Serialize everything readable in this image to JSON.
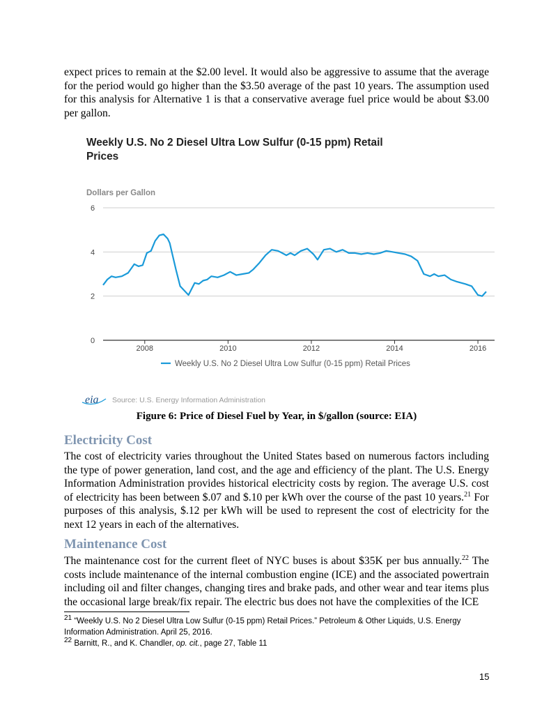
{
  "intro_paragraph": "expect prices to remain at the $2.00 level. It would also be aggressive to assume that the average for the period would go higher than the $3.50 average of the past 10 years.  The assumption used for this analysis for Alternative 1 is that a conservative average fuel price would be about $3.00 per gallon.",
  "figure": {
    "title": "Weekly U.S. No 2 Diesel Ultra Low Sulfur (0-15 ppm) Retail Prices",
    "source": "Source: U.S. Energy Information Administration",
    "logo_text": "eia",
    "caption": "Figure 6:  Price of Diesel Fuel by Year, in $/gallon (source: EIA)"
  },
  "chart_data": {
    "type": "line",
    "title": "Weekly U.S. No 2 Diesel Ultra Low Sulfur (0-15 ppm) Retail Prices",
    "ylabel": "Dollars per Gallon",
    "xlabel": "",
    "ylim": [
      0,
      6
    ],
    "xlim": [
      2007.0,
      2016.4
    ],
    "y_ticks": [
      "0",
      "2",
      "4",
      "6"
    ],
    "x_ticks": [
      "2008",
      "2010",
      "2012",
      "2014",
      "2016"
    ],
    "grid": "horizontal",
    "legend": "bottom",
    "color": "#1a9ad9",
    "series": [
      {
        "name": "Weekly U.S. No 2 Diesel Ultra Low Sulfur (0-15 ppm) Retail Prices",
        "x": [
          2007.0,
          2007.1,
          2007.2,
          2007.3,
          2007.45,
          2007.6,
          2007.75,
          2007.85,
          2007.95,
          2008.05,
          2008.15,
          2008.25,
          2008.35,
          2008.45,
          2008.55,
          2008.6,
          2008.65,
          2008.75,
          2008.85,
          2008.95,
          2009.05,
          2009.2,
          2009.3,
          2009.4,
          2009.5,
          2009.6,
          2009.75,
          2009.9,
          2010.05,
          2010.2,
          2010.35,
          2010.5,
          2010.6,
          2010.75,
          2010.9,
          2011.05,
          2011.2,
          2011.3,
          2011.4,
          2011.5,
          2011.6,
          2011.75,
          2011.9,
          2012.05,
          2012.15,
          2012.3,
          2012.45,
          2012.6,
          2012.75,
          2012.9,
          2013.05,
          2013.2,
          2013.35,
          2013.5,
          2013.65,
          2013.8,
          2013.95,
          2014.1,
          2014.25,
          2014.4,
          2014.55,
          2014.7,
          2014.85,
          2014.95,
          2015.05,
          2015.2,
          2015.35,
          2015.5,
          2015.7,
          2015.85,
          2016.0,
          2016.1,
          2016.2
        ],
        "values": [
          2.5,
          2.75,
          2.9,
          2.85,
          2.9,
          3.05,
          3.45,
          3.35,
          3.4,
          3.95,
          4.05,
          4.5,
          4.75,
          4.8,
          4.6,
          4.4,
          4.0,
          3.2,
          2.45,
          2.25,
          2.05,
          2.6,
          2.55,
          2.7,
          2.75,
          2.9,
          2.85,
          2.95,
          3.1,
          2.95,
          3.0,
          3.05,
          3.2,
          3.5,
          3.85,
          4.1,
          4.05,
          3.95,
          3.85,
          3.95,
          3.85,
          4.05,
          4.15,
          3.9,
          3.65,
          4.1,
          4.15,
          4.0,
          4.1,
          3.95,
          3.95,
          3.9,
          3.95,
          3.9,
          3.95,
          4.05,
          4.0,
          3.95,
          3.9,
          3.8,
          3.6,
          3.0,
          2.9,
          3.0,
          2.9,
          2.95,
          2.75,
          2.65,
          2.55,
          2.45,
          2.05,
          2.0,
          2.2
        ]
      }
    ]
  },
  "sections": [
    {
      "heading": "Electricity Cost",
      "text_before_note": "The cost of electricity varies throughout the United States based on numerous factors including the type of power generation, land cost, and the age and efficiency of the plant.  The U.S. Energy Information Administration provides historical electricity costs by region.  The average U.S. cost of electricity has been between $.07 and $.10 per kWh over the course of the past 10 years.",
      "note": "21",
      "text_after_note": "  For purposes of this analysis, $.12 per kWh will be used to represent the cost of electricity for the next 12 years in each of the alternatives."
    },
    {
      "heading": "Maintenance Cost",
      "text_before_note": "The maintenance cost for the current fleet of NYC buses is about $35K per bus annually.",
      "note": "22",
      "text_after_note": "  The costs include maintenance of the internal combustion engine (ICE) and the associated powertrain including oil and filter changes, changing tires and brake pads, and other wear and tear items plus the occasional large break/fix repair.  The electric bus does not have the complexities of the ICE"
    }
  ],
  "footnotes": [
    {
      "number": "21",
      "text": " “Weekly U.S. No 2 Diesel Ultra Low Sulfur (0-15 ppm) Retail Prices.”  Petroleum & Other Liquids, U.S. Energy Information Administration.  April 25, 2016."
    },
    {
      "number": "22",
      "pre": " Barnitt, R., and K. Chandler, ",
      "italic": "op. cit.",
      "post": ", page 27, Table 11"
    }
  ],
  "page_number": "15"
}
